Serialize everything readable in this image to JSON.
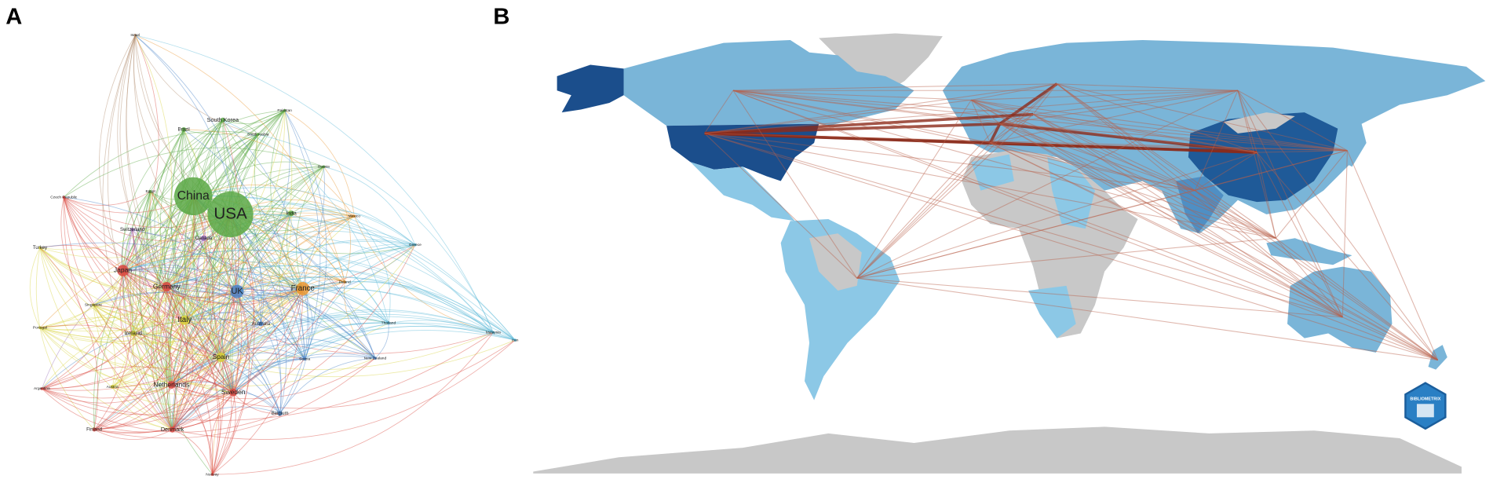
{
  "panels": {
    "a": {
      "label": "A",
      "nodes": [
        {
          "label": "Israel",
          "color": "#b08a6a"
        },
        {
          "label": "Brazil",
          "color": "#5aa845"
        },
        {
          "label": "South Korea",
          "color": "#5aa845"
        },
        {
          "label": "Pakistan",
          "color": "#5aa845"
        },
        {
          "label": "Saudi Arabia",
          "color": "#5aa845"
        },
        {
          "label": "Russia",
          "color": "#5aa845"
        },
        {
          "label": "Egypt",
          "color": "#5aa845"
        },
        {
          "label": "Czech Republic",
          "color": "#d9473f"
        },
        {
          "label": "China",
          "color": "#5aa845"
        },
        {
          "label": "USA",
          "color": "#5aa845"
        },
        {
          "label": "India",
          "color": "#5aa845"
        },
        {
          "label": "Mexico",
          "color": "#e8952f"
        },
        {
          "label": "Switzerland",
          "color": "#9a6fb8"
        },
        {
          "label": "Canada",
          "color": "#9a6fb8"
        },
        {
          "label": "Greece",
          "color": "#58b8d6"
        },
        {
          "label": "Turkey",
          "color": "#d8d23c"
        },
        {
          "label": "Japan",
          "color": "#d9473f"
        },
        {
          "label": "Germany",
          "color": "#d9473f"
        },
        {
          "label": "UK",
          "color": "#4a82c8"
        },
        {
          "label": "France",
          "color": "#e8952f"
        },
        {
          "label": "Poland",
          "color": "#e8952f"
        },
        {
          "label": "Singapore",
          "color": "#d8d23c"
        },
        {
          "label": "Italy",
          "color": "#d8d23c"
        },
        {
          "label": "Australia",
          "color": "#4a82c8"
        },
        {
          "label": "Thailand",
          "color": "#58b8d6"
        },
        {
          "label": "Portugal",
          "color": "#d8d23c"
        },
        {
          "label": "Ireland",
          "color": "#d8d23c"
        },
        {
          "label": "Malaysia",
          "color": "#58b8d6"
        },
        {
          "label": "Iran",
          "color": "#58b8d6"
        },
        {
          "label": "Spain",
          "color": "#d8d23c"
        },
        {
          "label": "Serbia",
          "color": "#4a82c8"
        },
        {
          "label": "New Zealand",
          "color": "#4a82c8"
        },
        {
          "label": "Austria",
          "color": "#d8d23c"
        },
        {
          "label": "Argentina",
          "color": "#d9473f"
        },
        {
          "label": "Netherlands",
          "color": "#d9473f"
        },
        {
          "label": "Sweden",
          "color": "#d9473f"
        },
        {
          "label": "Belgium",
          "color": "#4a82c8"
        },
        {
          "label": "Finland",
          "color": "#d9473f"
        },
        {
          "label": "Denmark",
          "color": "#d9473f"
        },
        {
          "label": "Norway",
          "color": "#d9473f"
        }
      ]
    },
    "b": {
      "label": "B",
      "logo": "BIBLIOMETRIX"
    }
  }
}
